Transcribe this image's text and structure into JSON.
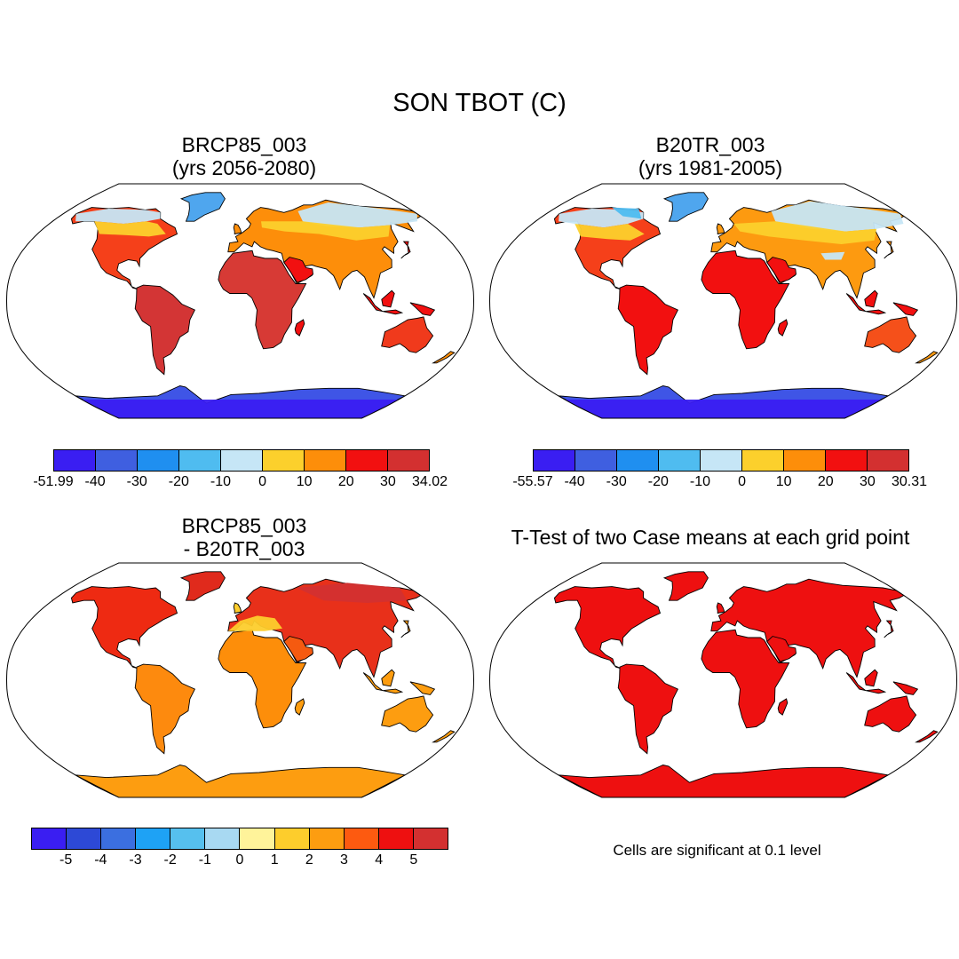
{
  "title": "SON TBOT (C)",
  "panels": [
    {
      "id": "p1",
      "title_line1": "BRCP85_003",
      "title_line2": "(yrs 2056-2080)"
    },
    {
      "id": "p2",
      "title_line1": "B20TR_003",
      "title_line2": "(yrs 1981-2005)"
    },
    {
      "id": "p3",
      "title_line1": "BRCP85_003",
      "title_line2": "- B20TR_003"
    },
    {
      "id": "p4",
      "title_line1": "T-Test of two Case means at each grid point",
      "title_line2": ""
    }
  ],
  "colorbars": {
    "cb1": {
      "colors": [
        "#3a1ef2",
        "#3f5fe0",
        "#1f8ff0",
        "#4fbcf0",
        "#c6e6f6",
        "#fcd02c",
        "#fd8e0a",
        "#f21010",
        "#d33030"
      ],
      "labels": [
        "-51.99",
        "-40",
        "-30",
        "-20",
        "-10",
        "0",
        "10",
        "20",
        "30",
        "34.02"
      ]
    },
    "cb2": {
      "colors": [
        "#3a1ef2",
        "#3f5fe0",
        "#1f8ff0",
        "#4fbcf0",
        "#c6e6f6",
        "#fcd02c",
        "#fd8e0a",
        "#f21010",
        "#d33030"
      ],
      "labels": [
        "-55.57",
        "-40",
        "-30",
        "-20",
        "-10",
        "0",
        "10",
        "20",
        "30",
        "30.31"
      ]
    },
    "cb3": {
      "colors": [
        "#3a1ef2",
        "#2d49d6",
        "#3b6fe0",
        "#1ea2f5",
        "#56c0ee",
        "#a8d9f2",
        "#fff39a",
        "#fdcd2c",
        "#fd9d10",
        "#fd5a10",
        "#ee1010",
        "#d33030"
      ],
      "labels": [
        "-5",
        "-4",
        "-3",
        "-2",
        "-1",
        "0",
        "1",
        "2",
        "3",
        "4",
        "5"
      ]
    }
  },
  "significance_note": "Cells are significant at 0.1 level"
}
